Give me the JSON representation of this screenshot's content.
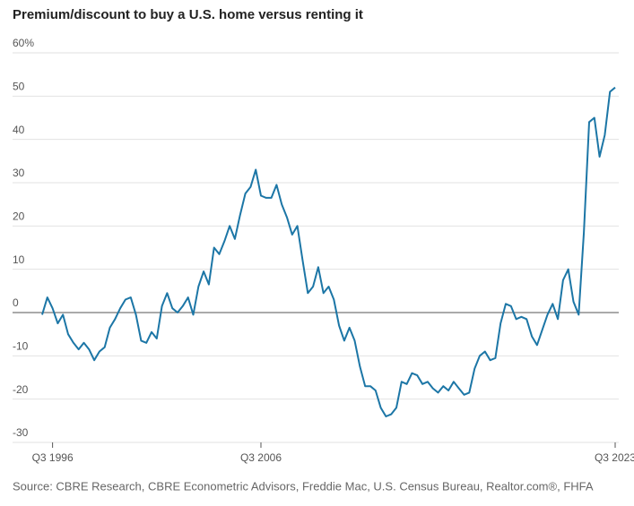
{
  "chart_data": {
    "type": "line",
    "title": "Premium/discount to buy a U.S. home versus renting it",
    "source": "Source: CBRE Research, CBRE Econometric Advisors, Freddie Mac, U.S. Census Bureau, Realtor.com®, FHFA",
    "categories": [
      null,
      null,
      "Q3 1996",
      null,
      null,
      null,
      null,
      null,
      null,
      null,
      null,
      null,
      null,
      null,
      null,
      null,
      null,
      null,
      null,
      null,
      null,
      null,
      null,
      null,
      null,
      null,
      null,
      null,
      null,
      null,
      null,
      null,
      null,
      null,
      null,
      null,
      null,
      null,
      null,
      null,
      null,
      null,
      "Q3 2006",
      null,
      null,
      null,
      null,
      null,
      null,
      null,
      null,
      null,
      null,
      null,
      null,
      null,
      null,
      null,
      null,
      null,
      null,
      null,
      null,
      null,
      null,
      null,
      null,
      null,
      null,
      null,
      null,
      null,
      null,
      null,
      null,
      null,
      null,
      null,
      null,
      null,
      null,
      null,
      null,
      null,
      null,
      null,
      null,
      null,
      null,
      null,
      null,
      null,
      null,
      null,
      null,
      null,
      null,
      null,
      null,
      null,
      null,
      null,
      null,
      null,
      null,
      null,
      null,
      null,
      null,
      null,
      "Q3 2023"
    ],
    "series": [
      {
        "name": "Premium/discount",
        "color": "#1c76a6",
        "values": [
          -0.5,
          3.5,
          1,
          -2.5,
          -0.5,
          -5,
          -7,
          -8.5,
          -7,
          -8.5,
          -11,
          -9,
          -8,
          -3.5,
          -1.5,
          1,
          3,
          3.5,
          -0.5,
          -6.5,
          -7,
          -4.5,
          -6,
          1.5,
          4.5,
          1,
          0,
          1.5,
          3.5,
          -0.5,
          6,
          9.5,
          6.5,
          15,
          13.5,
          16.5,
          20,
          17,
          22.5,
          27.5,
          29,
          33,
          27,
          26.5,
          26.5,
          29.5,
          25,
          22,
          18,
          20,
          12,
          4.5,
          6,
          10.5,
          4.5,
          6,
          3,
          -3,
          -6.5,
          -3.5,
          -6.5,
          -12.5,
          -17,
          -17,
          -18,
          -22,
          -24,
          -23.5,
          -22,
          -16,
          -16.5,
          -14,
          -14.5,
          -16.5,
          -16,
          -17.5,
          -18.5,
          -17,
          -18,
          -16,
          -17.5,
          -19,
          -18.5,
          -13,
          -10,
          -9,
          -11,
          -10.5,
          -2.5,
          2,
          1.5,
          -1.5,
          -1,
          -1.5,
          -5.5,
          -7.5,
          -4,
          -0.5,
          2,
          -1.5,
          7.5,
          10,
          2.5,
          -0.5,
          18.5,
          44,
          45,
          36,
          41,
          51,
          52
        ]
      }
    ],
    "ylim": [
      -30,
      60
    ],
    "yticks": [
      -30,
      -20,
      -10,
      0,
      10,
      20,
      30,
      40,
      50,
      {
        "value": 60,
        "label": "60%"
      }
    ],
    "grid": true
  }
}
